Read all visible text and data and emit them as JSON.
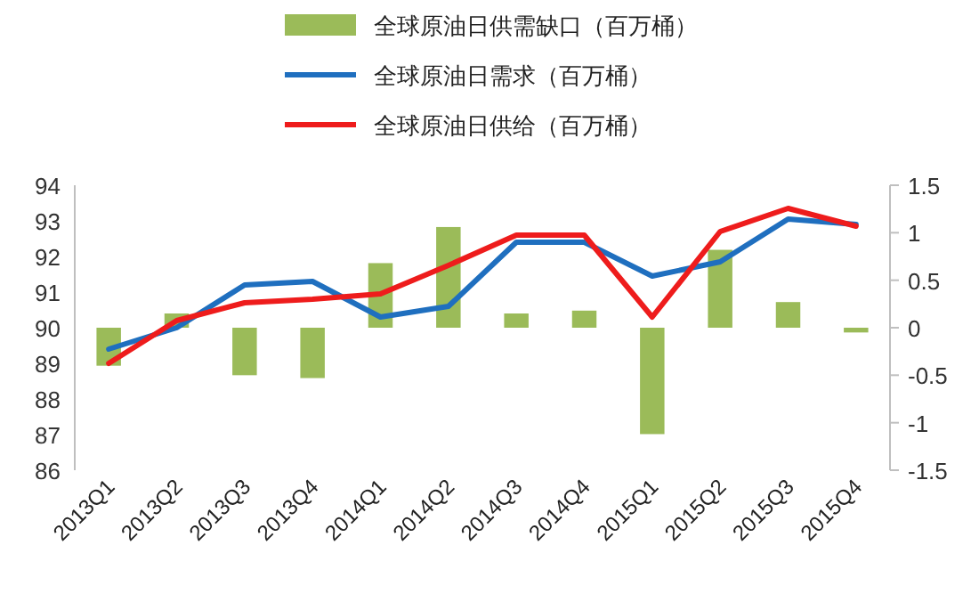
{
  "chart_data": {
    "type": "line",
    "categories": [
      "2013Q1",
      "2013Q2",
      "2013Q3",
      "2013Q4",
      "2014Q1",
      "2014Q2",
      "2014Q3",
      "2014Q4",
      "2015Q1",
      "2015Q2",
      "2015Q3",
      "2015Q4"
    ],
    "series": [
      {
        "name": "全球原油日供需缺口（百万桶）",
        "type": "bar",
        "axis": "y2",
        "color": "#9bbb59",
        "values": [
          -0.4,
          0.15,
          -0.5,
          -0.53,
          0.68,
          1.06,
          0.15,
          0.18,
          -1.12,
          0.82,
          0.27,
          -0.05
        ]
      },
      {
        "name": "全球原油日需求（百万桶）",
        "color": "#1f6fbf",
        "values": [
          89.4,
          90.0,
          91.2,
          91.3,
          90.3,
          90.6,
          92.4,
          92.4,
          91.45,
          91.85,
          93.05,
          92.9
        ]
      },
      {
        "name": "全球原油日供给（百万桶）",
        "color": "#ee1c1c",
        "values": [
          89.0,
          90.2,
          90.7,
          90.8,
          90.95,
          91.75,
          92.6,
          92.6,
          90.3,
          92.7,
          93.35,
          92.85
        ]
      }
    ],
    "ylim": [
      86,
      94
    ],
    "yticks": [
      86,
      87,
      88,
      89,
      90,
      91,
      92,
      93,
      94
    ],
    "y2lim": [
      -1.5,
      1.5
    ],
    "y2ticks": [
      -1.5,
      -1,
      -0.5,
      0,
      0.5,
      1,
      1.5
    ],
    "grid": false,
    "legend": "top",
    "marker": "none",
    "line_style": "solid"
  }
}
